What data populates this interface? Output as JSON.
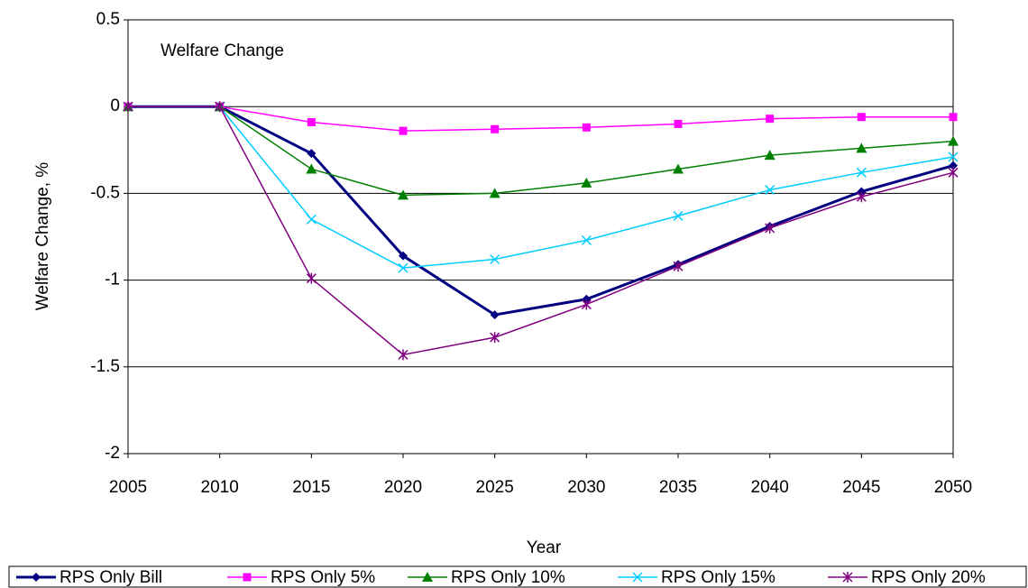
{
  "chart_data": {
    "type": "line",
    "title": "Welfare Change",
    "x_label": "Year",
    "y_label": "Welfare Change, %",
    "x": [
      2005,
      2010,
      2015,
      2020,
      2025,
      2030,
      2035,
      2040,
      2045,
      2050
    ],
    "xlim": [
      2005,
      2050
    ],
    "xticks": [
      2005,
      2010,
      2015,
      2020,
      2025,
      2030,
      2035,
      2040,
      2045,
      2050
    ],
    "ylim": [
      -2,
      0.5
    ],
    "yticks": [
      -2,
      -1.5,
      -1,
      -0.5,
      0,
      0.5
    ],
    "grid": true,
    "legend": "bottom",
    "series": [
      {
        "name": "RPS Only Bill",
        "color": "#000080",
        "marker": "diamond",
        "line_width": 3,
        "values": [
          0,
          0,
          -0.27,
          -0.86,
          -1.2,
          -1.11,
          -0.91,
          -0.69,
          -0.49,
          -0.34
        ]
      },
      {
        "name": "RPS Only 5%",
        "color": "#ff00ff",
        "marker": "square",
        "line_width": 1.5,
        "values": [
          0,
          0,
          -0.09,
          -0.14,
          -0.13,
          -0.12,
          -0.1,
          -0.07,
          -0.06,
          -0.06
        ]
      },
      {
        "name": "RPS Only 10%",
        "color": "#008000",
        "marker": "triangle",
        "line_width": 1.5,
        "values": [
          0,
          0,
          -0.36,
          -0.51,
          -0.5,
          -0.44,
          -0.36,
          -0.28,
          -0.24,
          -0.2
        ]
      },
      {
        "name": "RPS Only 15%",
        "color": "#00ccff",
        "marker": "x",
        "line_width": 1.5,
        "values": [
          0,
          0,
          -0.65,
          -0.93,
          -0.88,
          -0.77,
          -0.63,
          -0.48,
          -0.38,
          -0.29
        ]
      },
      {
        "name": "RPS Only 20%",
        "color": "#800080",
        "marker": "star",
        "line_width": 1.5,
        "values": [
          0,
          0,
          -0.99,
          -1.43,
          -1.33,
          -1.14,
          -0.92,
          -0.7,
          -0.52,
          -0.38
        ]
      }
    ]
  }
}
